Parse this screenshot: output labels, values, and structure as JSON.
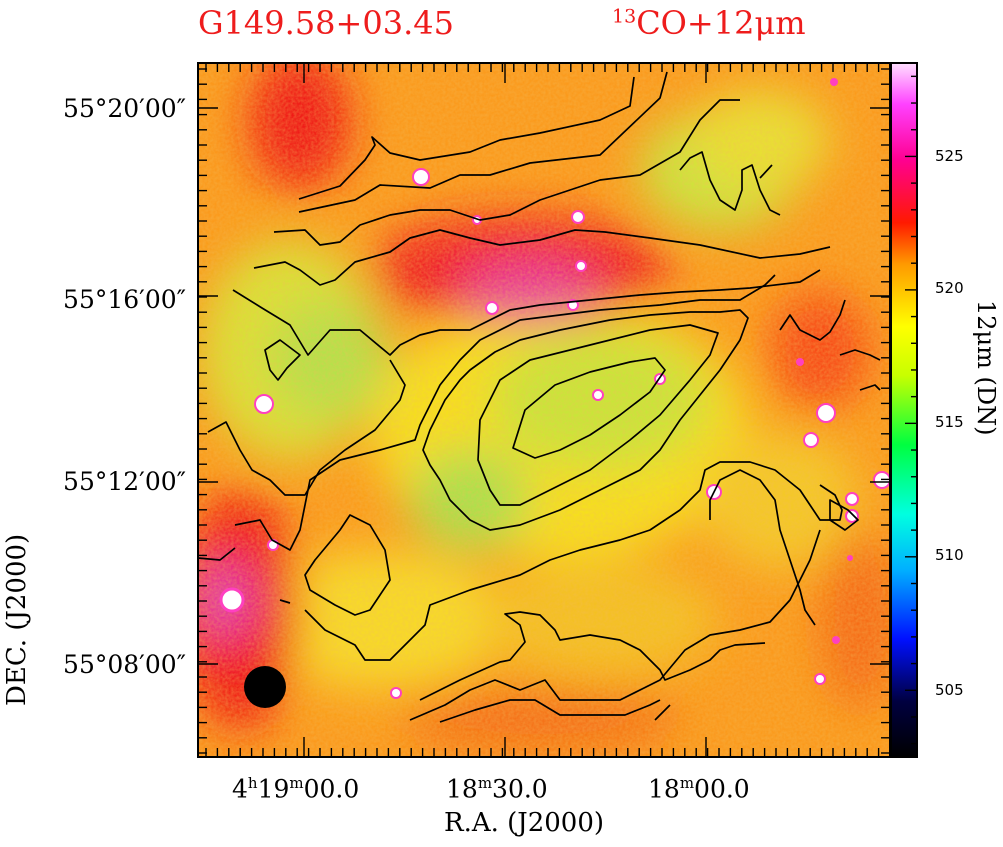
{
  "title_left": "G149.58+03.45",
  "title_right_sup": "13",
  "title_right_main": "CO+12μm",
  "chart_data": {
    "type": "heatmap",
    "title": "G149.58+03.45",
    "subtitle": "13CO+12μm",
    "xlabel": "R.A.  (J2000)",
    "ylabel": "DEC.  (J2000)",
    "colorbar_label": "12μm  (DN)",
    "x_ticks": [
      {
        "h": "4",
        "m": "19",
        "s": "00.0"
      },
      {
        "m": "18",
        "s": "30.0"
      },
      {
        "m": "18",
        "s": "00.0"
      }
    ],
    "y_ticks": [
      "55°20′00″",
      "55°16′00″",
      "55°12′00″",
      "55°08′00″"
    ],
    "colorbar_ticks": [
      505,
      510,
      515,
      520,
      525
    ],
    "colorbar_range": [
      502.5,
      528.5
    ],
    "overlay": "13CO integrated intensity contours",
    "beam": "filled black circle, lower-left"
  },
  "colors": {
    "title": "#ee1c1c",
    "contour": "#000000"
  }
}
